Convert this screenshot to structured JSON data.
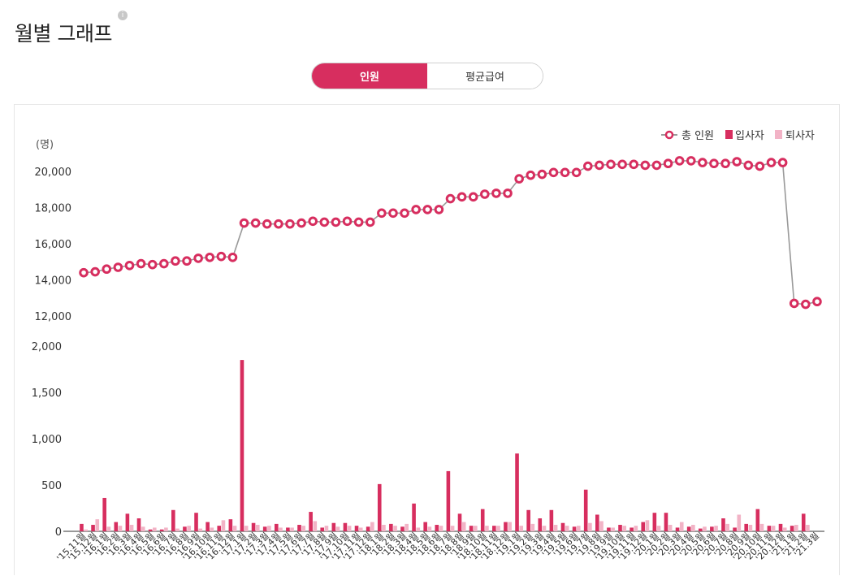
{
  "page": {
    "title": "월별 그래프",
    "info_icon": "info-icon"
  },
  "tabs": [
    {
      "label": "인원",
      "active": true
    },
    {
      "label": "평균급여",
      "active": false
    }
  ],
  "colors": {
    "accent": "#d72e5f",
    "hires": "#d72e5f",
    "leavers": "#f2b3c6",
    "line": "#999999"
  },
  "chart_data": [
    {
      "type": "line",
      "unit_label": "(명)",
      "legend": [
        "총 인원"
      ],
      "legend_position": "top-right",
      "ylim": [
        12000,
        21000
      ],
      "yticks": [
        "12,000",
        "14,000",
        "16,000",
        "18,000",
        "20,000"
      ],
      "series": [
        {
          "name": "총 인원",
          "values": [
            14400,
            14450,
            14600,
            14700,
            14800,
            14900,
            14850,
            14900,
            15050,
            15050,
            15200,
            15250,
            15300,
            15250,
            17150,
            17150,
            17100,
            17100,
            17100,
            17150,
            17250,
            17200,
            17200,
            17250,
            17200,
            17200,
            17700,
            17700,
            17700,
            17900,
            17900,
            17900,
            18500,
            18600,
            18600,
            18750,
            18800,
            18800,
            19600,
            19800,
            19850,
            19950,
            19950,
            19950,
            20300,
            20350,
            20400,
            20400,
            20400,
            20350,
            20350,
            20450,
            20600,
            20600,
            20500,
            20450,
            20450,
            20550,
            20350,
            20300,
            20500,
            20500,
            12700,
            12650,
            12800
          ]
        }
      ]
    },
    {
      "type": "bar",
      "legend": [
        "입사자",
        "퇴사자"
      ],
      "legend_position": "top-right",
      "ylim": [
        0,
        2000
      ],
      "yticks": [
        "0",
        "500",
        "1,000",
        "1,500",
        "2,000"
      ],
      "categories": [
        "'15.11월",
        "'15.12월",
        "'16.1월",
        "'16.2월",
        "'16.3월",
        "'16.4월",
        "'16.5월",
        "'16.6월",
        "'16.7월",
        "'16.8월",
        "'16.9월",
        "'16.10월",
        "'16.11월",
        "'16.12월",
        "'17.1월",
        "'17.2월",
        "'17.3월",
        "'17.4월",
        "'17.5월",
        "'17.6월",
        "'17.7월",
        "'17.8월",
        "'17.9월",
        "'17.10월",
        "'17.11월",
        "'17.12월",
        "'18.1월",
        "'18.2월",
        "'18.3월",
        "'18.4월",
        "'18.5월",
        "'18.6월",
        "'18.7월",
        "'18.8월",
        "'18.9월",
        "'18.10월",
        "'18.11월",
        "'18.12월",
        "'19.1월",
        "'19.2월",
        "'19.3월",
        "'19.4월",
        "'19.5월",
        "'19.6월",
        "'19.7월",
        "'19.8월",
        "'19.9월",
        "'19.10월",
        "'19.11월",
        "'19.12월",
        "'20.1월",
        "'20.2월",
        "'20.3월",
        "'20.4월",
        "'20.5월",
        "'20.6월",
        "'20.7월",
        "'20.8월",
        "'20.9월",
        "'20.10월",
        "'20.11월",
        "'20.12월",
        "'21.1월",
        "'21.2월",
        "'21.3월"
      ],
      "series": [
        {
          "name": "입사자",
          "values": [
            80,
            70,
            360,
            100,
            190,
            140,
            20,
            20,
            230,
            50,
            200,
            100,
            60,
            130,
            1850,
            90,
            50,
            80,
            40,
            70,
            210,
            40,
            90,
            90,
            60,
            50,
            510,
            80,
            50,
            300,
            100,
            70,
            650,
            190,
            60,
            240,
            60,
            100,
            840,
            230,
            140,
            230,
            90,
            50,
            450,
            180,
            40,
            70,
            40,
            100,
            200,
            200,
            40,
            50,
            30,
            50,
            140,
            40,
            80,
            240,
            60,
            80,
            60,
            190,
            0
          ]
        },
        {
          "name": "퇴사자",
          "values": [
            20,
            130,
            50,
            60,
            70,
            50,
            40,
            40,
            30,
            60,
            30,
            40,
            120,
            60,
            60,
            70,
            60,
            40,
            40,
            60,
            110,
            60,
            50,
            60,
            40,
            100,
            70,
            60,
            80,
            40,
            50,
            60,
            60,
            100,
            60,
            60,
            60,
            100,
            60,
            80,
            60,
            70,
            60,
            60,
            90,
            110,
            40,
            60,
            60,
            120,
            60,
            70,
            100,
            70,
            50,
            60,
            80,
            180,
            70,
            80,
            60,
            40,
            70,
            70,
            0
          ]
        }
      ]
    }
  ]
}
